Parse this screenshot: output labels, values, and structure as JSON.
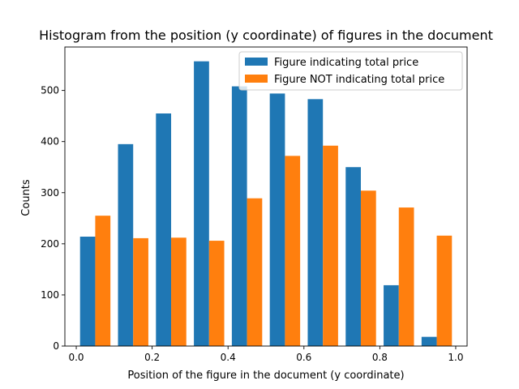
{
  "chart_data": {
    "type": "bar",
    "title": "Histogram from the position (y coordinate) of figures in the document",
    "xlabel": "Position of the figure in the document (y coordinate)",
    "ylabel": "Counts",
    "xlim": [
      -0.03,
      1.03
    ],
    "ylim": [
      0,
      585
    ],
    "xticks": [
      0.0,
      0.2,
      0.4,
      0.6,
      0.8,
      1.0
    ],
    "xtick_labels": [
      "0.0",
      "0.2",
      "0.4",
      "0.6",
      "0.8",
      "1.0"
    ],
    "yticks": [
      0,
      100,
      200,
      300,
      400,
      500
    ],
    "ytick_labels": [
      "0",
      "100",
      "200",
      "300",
      "400",
      "500"
    ],
    "bin_edges": [
      0.0,
      0.1,
      0.2,
      0.3,
      0.4,
      0.5,
      0.6,
      0.7,
      0.8,
      0.9,
      1.0
    ],
    "series": [
      {
        "name": "Figure indicating total price",
        "color": "#1f77b4",
        "values": [
          214,
          395,
          455,
          557,
          508,
          494,
          483,
          350,
          119,
          18
        ]
      },
      {
        "name": "Figure NOT indicating total price",
        "color": "#ff7f0e",
        "values": [
          255,
          211,
          212,
          206,
          289,
          372,
          392,
          304,
          271,
          216
        ]
      }
    ],
    "legend": {
      "position": "top-right"
    },
    "grid": false
  }
}
